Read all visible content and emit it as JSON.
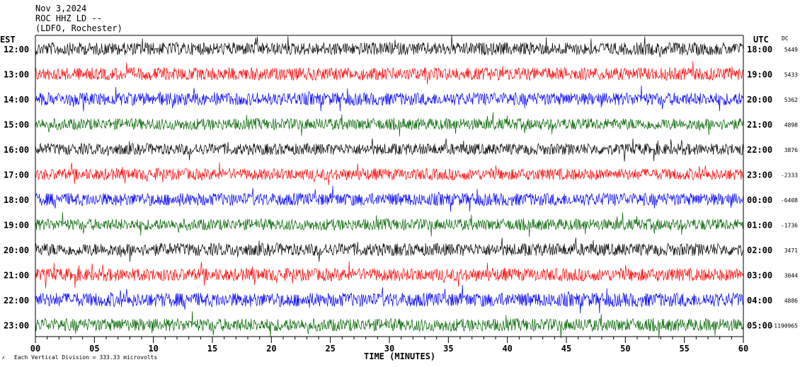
{
  "header": {
    "date": "Nov 3,2024",
    "station": "ROC HHZ LD --",
    "location": "(LDFO, Rochester)"
  },
  "chart_data": {
    "type": "line",
    "title": "ROC HHZ LD -- helicorder",
    "left_axis_label": "EST",
    "right_axis_label": "UTC",
    "dc_label": "DC",
    "xlabel": "TIME (MINUTES)",
    "scale_note": "Each Vertical Division =  333.33 microvolts",
    "xlim": [
      0,
      60
    ],
    "x_ticks": [
      "00",
      "05",
      "10",
      "15",
      "20",
      "25",
      "30",
      "35",
      "40",
      "45",
      "50",
      "55",
      "60"
    ],
    "rows": [
      {
        "est": "12:00",
        "utc": "18:00",
        "dc": "5449",
        "color": "#000000",
        "amp": 1.0
      },
      {
        "est": "13:00",
        "utc": "19:00",
        "dc": "5433",
        "color": "#ff0000",
        "amp": 1.0
      },
      {
        "est": "14:00",
        "utc": "20:00",
        "dc": "5362",
        "color": "#0000ff",
        "amp": 1.0
      },
      {
        "est": "15:00",
        "utc": "21:00",
        "dc": "4898",
        "color": "#006400",
        "amp": 0.9
      },
      {
        "est": "16:00",
        "utc": "22:00",
        "dc": "3876",
        "color": "#000000",
        "amp": 0.9
      },
      {
        "est": "17:00",
        "utc": "23:00",
        "dc": "-2333",
        "color": "#ff0000",
        "amp": 0.9
      },
      {
        "est": "18:00",
        "utc": "00:00",
        "dc": "-6408",
        "color": "#0000ff",
        "amp": 1.0
      },
      {
        "est": "19:00",
        "utc": "01:00",
        "dc": "-1736",
        "color": "#006400",
        "amp": 0.9
      },
      {
        "est": "20:00",
        "utc": "02:00",
        "dc": "3471",
        "color": "#000000",
        "amp": 1.0
      },
      {
        "est": "21:00",
        "utc": "03:00",
        "dc": "3044",
        "color": "#ff0000",
        "amp": 1.0
      },
      {
        "est": "22:00",
        "utc": "04:00",
        "dc": "4886",
        "color": "#0000ff",
        "amp": 1.1
      },
      {
        "est": "23:00",
        "utc": "05:00",
        "dc": "-1190965",
        "color": "#006400",
        "amp": 1.0
      }
    ],
    "grid": false
  }
}
